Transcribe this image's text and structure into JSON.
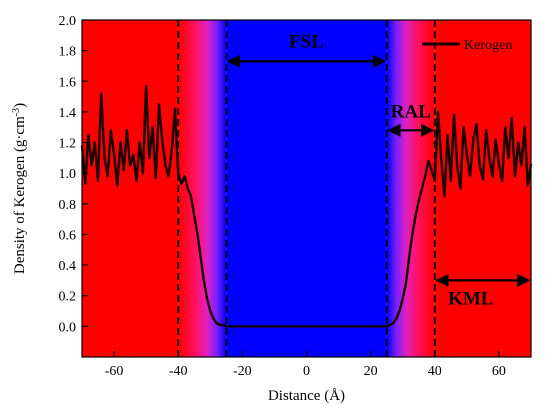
{
  "chart_data": {
    "type": "line",
    "xlabel": "Distance (Å)",
    "ylabel": "Density of Kerogen (g·cm",
    "ylabel_sup": "-3",
    "ylabel_close": ")",
    "xlim": [
      -70,
      70
    ],
    "ylim": [
      -0.2,
      2.0
    ],
    "xticks": [
      -60,
      -40,
      -20,
      0,
      20,
      40,
      60
    ],
    "yticks": [
      0.0,
      0.2,
      0.4,
      0.6,
      0.8,
      1.0,
      1.2,
      1.4,
      1.6,
      1.8,
      2.0
    ],
    "tick_labels_x": [
      "-60",
      "-40",
      "-20",
      "0",
      "20",
      "40",
      "60"
    ],
    "tick_labels_y": [
      "0.0",
      "0.2",
      "0.4",
      "0.6",
      "0.8",
      "1.0",
      "1.2",
      "1.4",
      "1.6",
      "1.8",
      "2.0"
    ],
    "grid": false,
    "legend": {
      "placement": "top-right",
      "entries": [
        "Kerogen"
      ]
    },
    "colors": {
      "kerogen_region": "#ff0000",
      "fluid_region": "#0000ff",
      "series_line": "#1a0000"
    },
    "boundaries_x": [
      -40,
      -25,
      25,
      40
    ],
    "regions": [
      {
        "label": "FSL",
        "from": -25,
        "to": 25,
        "y": 1.73
      },
      {
        "label": "RAL",
        "from": 25,
        "to": 40,
        "y": 1.28
      },
      {
        "label": "KML",
        "from": 40,
        "to": 70,
        "y": 0.3
      }
    ],
    "series": [
      {
        "name": "Kerogen",
        "x": [
          -70,
          -69,
          -68,
          -67,
          -66,
          -65,
          -64,
          -63,
          -62,
          -61,
          -60,
          -59,
          -58,
          -57,
          -56,
          -55,
          -54,
          -53,
          -52,
          -51,
          -50,
          -49,
          -48,
          -47,
          -46,
          -45,
          -44,
          -43,
          -42,
          -41,
          -40,
          -39,
          -38,
          -37,
          -36,
          -35,
          -34,
          -33,
          -32,
          -31,
          -30,
          -29,
          -28,
          -27,
          -26,
          -25,
          -20,
          -10,
          0,
          10,
          20,
          25,
          26,
          27,
          28,
          29,
          30,
          31,
          32,
          33,
          34,
          35,
          36,
          37,
          38,
          39,
          40,
          41,
          42,
          43,
          44,
          45,
          46,
          47,
          48,
          49,
          50,
          51,
          52,
          53,
          54,
          55,
          56,
          57,
          58,
          59,
          60,
          61,
          62,
          63,
          64,
          65,
          66,
          67,
          68,
          69,
          70
        ],
        "y": [
          1.18,
          0.93,
          1.25,
          1.05,
          1.2,
          0.95,
          1.52,
          1.1,
          0.98,
          1.28,
          1.12,
          0.92,
          1.2,
          1.02,
          1.28,
          1.05,
          1.12,
          0.95,
          1.2,
          1.0,
          1.57,
          1.1,
          1.3,
          0.97,
          1.45,
          1.22,
          1.05,
          0.98,
          1.15,
          1.42,
          1.0,
          0.93,
          0.98,
          0.9,
          0.85,
          0.72,
          0.6,
          0.45,
          0.3,
          0.18,
          0.1,
          0.05,
          0.02,
          0.01,
          0.01,
          0.0,
          0.0,
          0.0,
          0.0,
          0.0,
          0.0,
          0.0,
          0.01,
          0.02,
          0.05,
          0.1,
          0.18,
          0.28,
          0.45,
          0.6,
          0.72,
          0.82,
          0.9,
          0.98,
          1.08,
          1.02,
          0.95,
          1.4,
          1.1,
          0.85,
          1.25,
          0.95,
          1.38,
          1.05,
          0.9,
          1.3,
          1.12,
          0.98,
          1.22,
          1.32,
          1.05,
          0.96,
          1.28,
          1.1,
          0.98,
          1.22,
          1.06,
          0.95,
          1.3,
          1.1,
          1.36,
          0.98,
          1.2,
          1.05,
          1.3,
          0.92,
          1.06
        ]
      }
    ]
  }
}
